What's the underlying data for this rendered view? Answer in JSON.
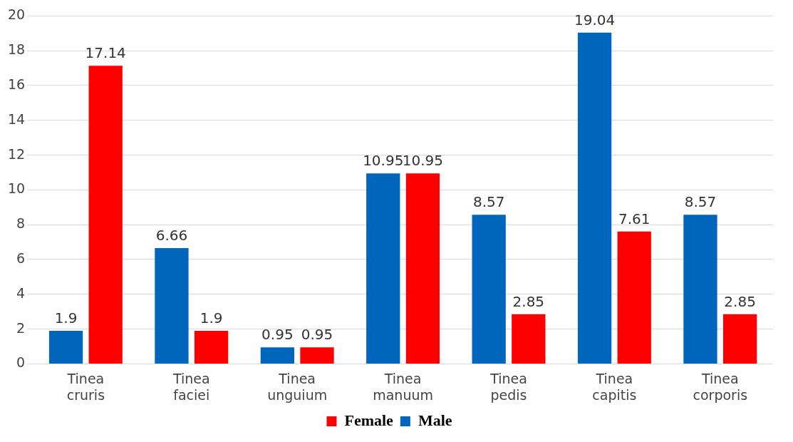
{
  "chart_data": {
    "type": "bar",
    "categories": [
      "Tinea\ncruris",
      "Tinea\nfaciei",
      "Tinea\nunguium",
      "Tinea\nmanuum",
      "Tinea\npedis",
      "Tinea\ncapitis",
      "Tinea\ncorporis"
    ],
    "series": [
      {
        "name": "Male",
        "color": "#0066bb",
        "values": [
          1.9,
          6.66,
          0.95,
          10.95,
          8.57,
          19.04,
          8.57
        ]
      },
      {
        "name": "Female",
        "color": "#ff0000",
        "values": [
          17.14,
          1.9,
          0.95,
          10.95,
          2.85,
          7.61,
          2.85
        ]
      }
    ],
    "ylim": [
      0,
      20
    ],
    "yticks": [
      0,
      2,
      4,
      6,
      8,
      10,
      12,
      14,
      16,
      18,
      20
    ],
    "grid": "y",
    "legend": "bottom",
    "data_labels": true
  }
}
